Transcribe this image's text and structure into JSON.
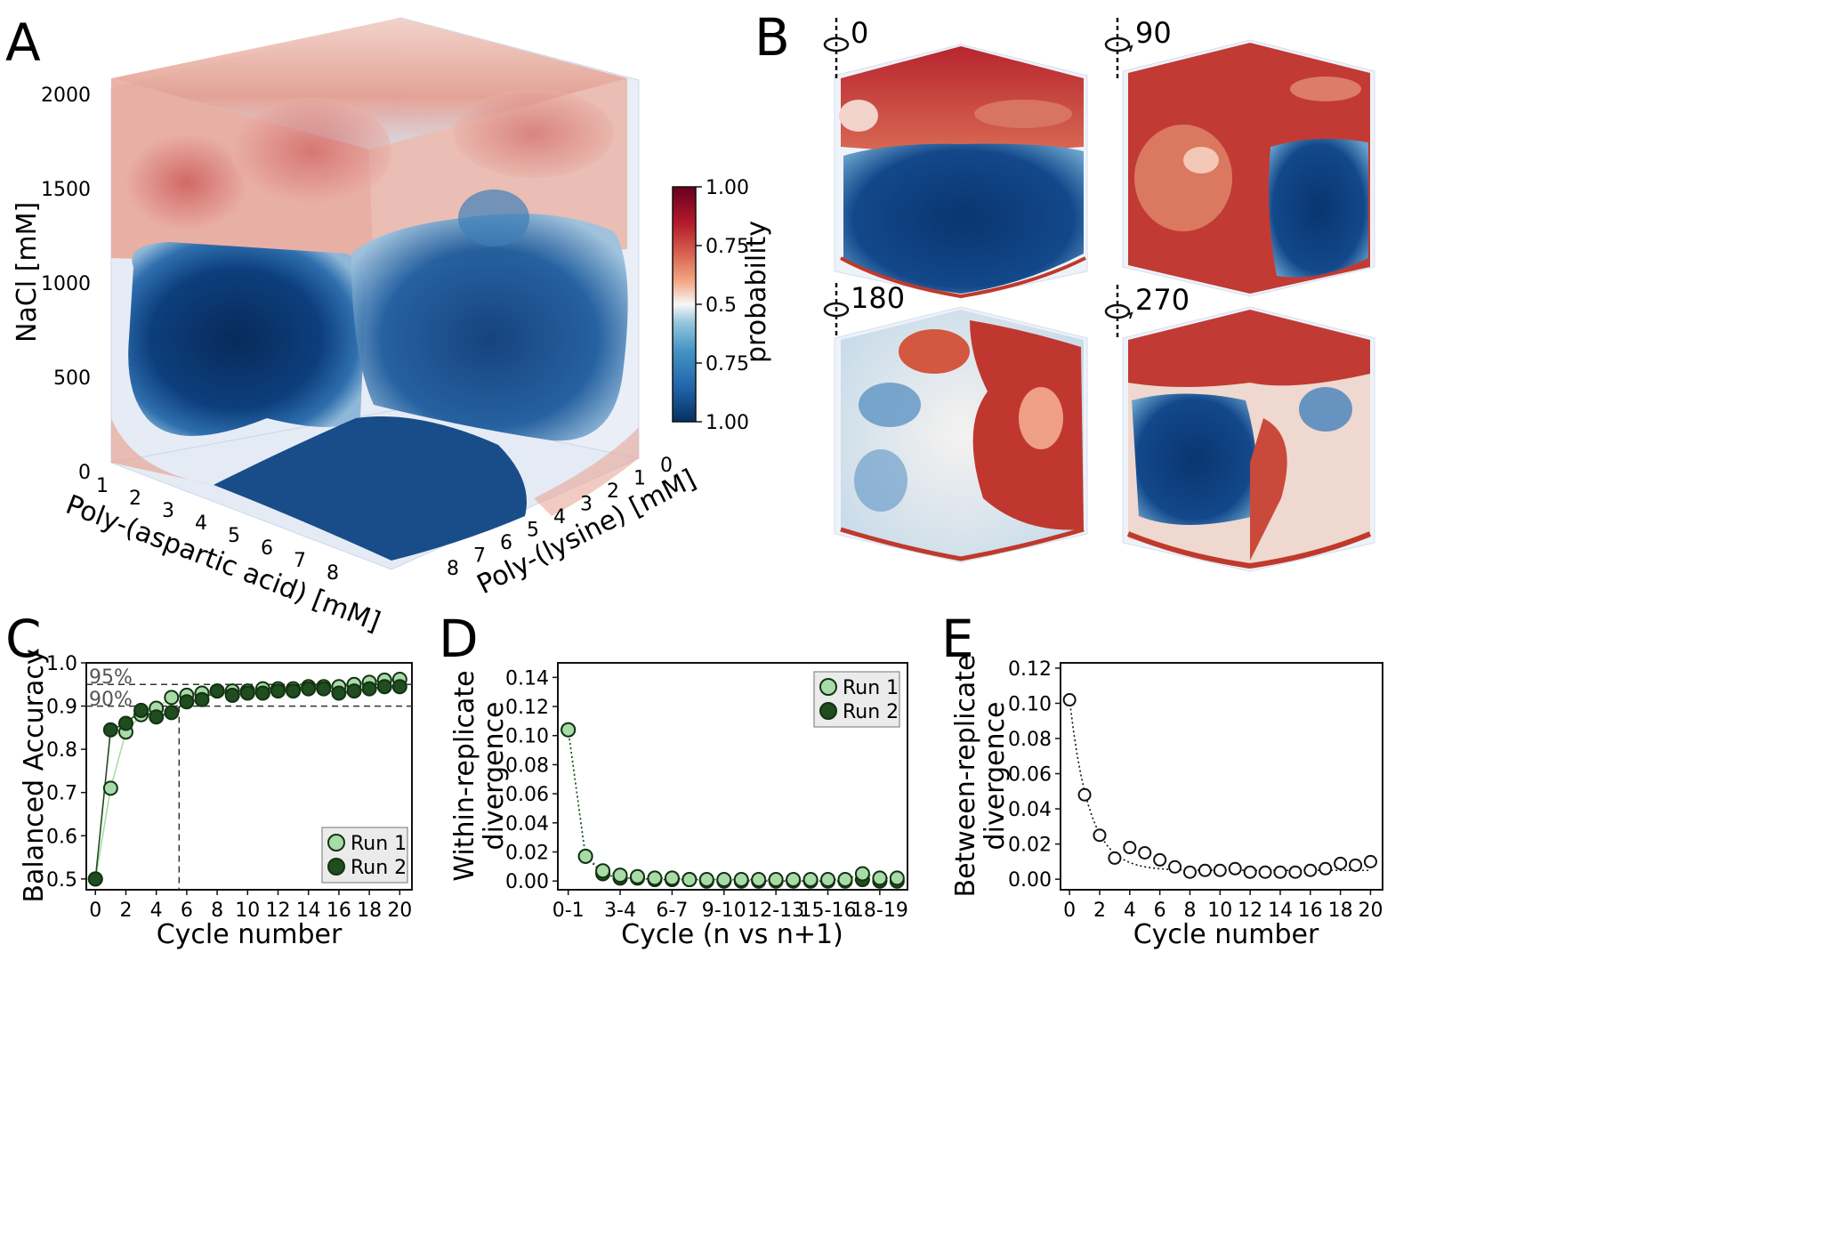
{
  "panels": {
    "A": {
      "letter": "A",
      "axes": {
        "x_label": "Poly-(aspartic acid) [mM]",
        "y_label": "Poly-(lysine) [mM]",
        "z_label": "NaCl [mM]",
        "x_ticks": [
          "1",
          "2",
          "3",
          "4",
          "5",
          "6",
          "7",
          "8"
        ],
        "y_ticks": [
          "0",
          "1",
          "2",
          "3",
          "4",
          "5",
          "6",
          "7",
          "8"
        ],
        "z_ticks": [
          "0",
          "500",
          "1000",
          "1500",
          "2000"
        ]
      },
      "colorbar": {
        "label": "probability",
        "ticks": [
          "1.00",
          "0.75",
          "0.5",
          "0.75",
          "1.00"
        ],
        "colors": [
          "#053061",
          "#2166ac",
          "#4393c3",
          "#92c5de",
          "#f7f7f7",
          "#f4a582",
          "#d6604d",
          "#b2182b",
          "#67001f"
        ]
      }
    },
    "B": {
      "letter": "B",
      "views": [
        {
          "angle": "0",
          "rotate_icon": "rotate-icon"
        },
        {
          "angle": "90",
          "rotate_icon": "rotate-icon"
        },
        {
          "angle": "180",
          "rotate_icon": "rotate-icon"
        },
        {
          "angle": "270",
          "rotate_icon": "rotate-icon"
        }
      ]
    },
    "C": {
      "letter": "C",
      "xlabel": "Cycle number",
      "ylabel": "Balanced Accuracy",
      "ref_labels": [
        "95%",
        "90%"
      ]
    },
    "D": {
      "letter": "D",
      "xlabel": "Cycle (n vs n+1)",
      "ylabel_lines": [
        "Within-replicate",
        "divergence"
      ]
    },
    "E": {
      "letter": "E",
      "xlabel": "Cycle number",
      "ylabel_lines": [
        "Between-replicate",
        "divergence"
      ]
    }
  },
  "colors": {
    "run1_fill": "#a8dba8",
    "run2_fill": "#1f4d1f",
    "edge": "#123312",
    "red": "#b2182b",
    "blue": "#0b3a78"
  },
  "chart_data": [
    {
      "panel": "C",
      "type": "line",
      "xlabel": "Cycle number",
      "ylabel": "Balanced Accuracy",
      "xlim": [
        -0.6,
        20.8
      ],
      "ylim": [
        0.475,
        1.0
      ],
      "xticks": [
        0,
        2,
        4,
        6,
        8,
        10,
        12,
        14,
        16,
        18,
        20
      ],
      "yticks": [
        0.5,
        0.6,
        0.7,
        0.8,
        0.9,
        1.0
      ],
      "x": [
        0,
        1,
        2,
        3,
        4,
        5,
        6,
        7,
        8,
        9,
        10,
        11,
        12,
        13,
        14,
        15,
        16,
        17,
        18,
        19,
        20
      ],
      "series": [
        {
          "name": "Run 1",
          "color": "#a8dba8",
          "values": [
            0.5,
            0.71,
            0.84,
            0.88,
            0.895,
            0.92,
            0.925,
            0.93,
            0.935,
            0.935,
            0.935,
            0.94,
            0.94,
            0.94,
            0.945,
            0.945,
            0.945,
            0.95,
            0.955,
            0.96,
            0.962
          ]
        },
        {
          "name": "Run 2",
          "color": "#1f4d1f",
          "values": [
            0.5,
            0.845,
            0.86,
            0.89,
            0.875,
            0.885,
            0.91,
            0.915,
            0.935,
            0.925,
            0.93,
            0.93,
            0.935,
            0.935,
            0.94,
            0.94,
            0.93,
            0.935,
            0.94,
            0.945,
            0.945
          ]
        }
      ],
      "hlines": [
        0.95,
        0.9
      ],
      "vline": 5.5,
      "legend": "bottom-right",
      "grid": false
    },
    {
      "panel": "D",
      "type": "line",
      "xlabel": "Cycle (n vs n+1)",
      "ylabel": "Within-replicate divergence",
      "xlim": [
        -0.6,
        19.6
      ],
      "ylim": [
        -0.006,
        0.15
      ],
      "xtick_positions": [
        0,
        3,
        6,
        9,
        12,
        15,
        18
      ],
      "xtick_labels": [
        "0-1",
        "3-4",
        "6-7",
        "9-10",
        "12-13",
        "15-16",
        "18-19"
      ],
      "yticks": [
        0.0,
        0.02,
        0.04,
        0.06,
        0.08,
        0.1,
        0.12,
        0.14
      ],
      "x": [
        0,
        1,
        2,
        3,
        4,
        5,
        6,
        7,
        8,
        9,
        10,
        11,
        12,
        13,
        14,
        15,
        16,
        17,
        18,
        19
      ],
      "series": [
        {
          "name": "Run 1",
          "color": "#a8dba8",
          "values": [
            0.104,
            0.017,
            0.007,
            0.004,
            0.003,
            0.002,
            0.002,
            0.001,
            0.001,
            0.001,
            0.001,
            0.001,
            0.001,
            0.001,
            0.001,
            0.001,
            0.001,
            0.005,
            0.002,
            0.002
          ]
        },
        {
          "name": "Run 2",
          "color": "#1f4d1f",
          "values": [
            0.104,
            0.017,
            0.005,
            0.002,
            0.002,
            0.001,
            0.001,
            0.001,
            0.0,
            0.0,
            0.0,
            0.0,
            0.0,
            0.0,
            0.0,
            0.0,
            0.0,
            0.001,
            0.0,
            0.0
          ]
        }
      ],
      "legend": "top-right",
      "grid": false
    },
    {
      "panel": "E",
      "type": "scatter",
      "xlabel": "Cycle number",
      "ylabel": "Between-replicate divergence",
      "xlim": [
        -0.6,
        20.8
      ],
      "ylim": [
        -0.006,
        0.123
      ],
      "xticks": [
        0,
        2,
        4,
        6,
        8,
        10,
        12,
        14,
        16,
        18,
        20
      ],
      "yticks": [
        0.0,
        0.02,
        0.04,
        0.06,
        0.08,
        0.1,
        0.12
      ],
      "x": [
        0,
        1,
        2,
        3,
        4,
        5,
        6,
        7,
        8,
        9,
        10,
        11,
        12,
        13,
        14,
        15,
        16,
        17,
        18,
        19,
        20
      ],
      "values": [
        0.102,
        0.048,
        0.025,
        0.012,
        0.018,
        0.015,
        0.011,
        0.007,
        0.004,
        0.005,
        0.005,
        0.006,
        0.004,
        0.004,
        0.004,
        0.004,
        0.005,
        0.006,
        0.009,
        0.008,
        0.01
      ],
      "fit": "exponential decay (dotted)",
      "grid": false
    }
  ]
}
